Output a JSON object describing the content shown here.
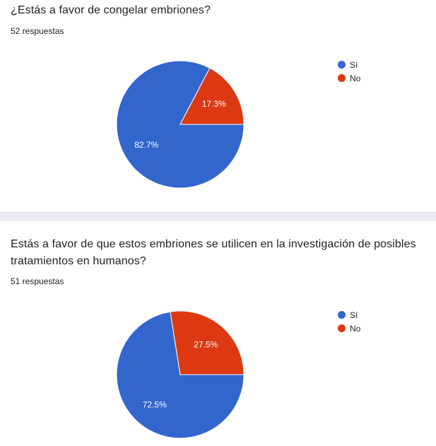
{
  "colors": {
    "si": "#3366cc",
    "no": "#dc3912"
  },
  "chart_data": [
    {
      "type": "pie",
      "title": "¿Estás a favor de congelar embriones?",
      "subtitle": "52 respuestas",
      "categories": [
        "Sí",
        "No"
      ],
      "values": [
        82.7,
        17.3
      ],
      "labels": [
        "82.7%",
        "17.3%"
      ],
      "legend": "right"
    },
    {
      "type": "pie",
      "title": "Estás a favor de que estos embriones se utilicen en la investigación de posibles tratamientos en humanos?",
      "subtitle": "51 respuestas",
      "categories": [
        "Sí",
        "No"
      ],
      "values": [
        72.5,
        27.5
      ],
      "labels": [
        "72.5%",
        "27.5%"
      ],
      "legend": "right"
    }
  ]
}
